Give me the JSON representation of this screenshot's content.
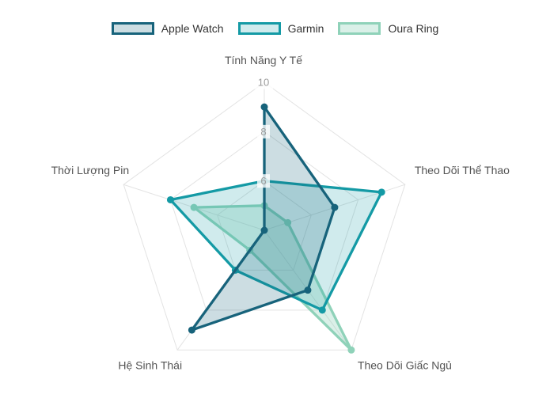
{
  "legend": {
    "position": "top",
    "items": [
      {
        "label": "Apple Watch"
      },
      {
        "label": "Garmin"
      },
      {
        "label": "Oura Ring"
      }
    ]
  },
  "chart_data": {
    "type": "radar",
    "categories": [
      "Tính Năng Y Tế",
      "Theo Dõi Thể Thao",
      "Theo Dõi Giấc Ngủ",
      "Hệ Sinh Thái",
      "Thời Lượng Pin"
    ],
    "series": [
      {
        "name": "Apple Watch",
        "values": [
          9,
          7,
          7,
          9,
          4
        ],
        "line_color": "#17637b",
        "fill_color": "rgba(23,99,123,0.22)"
      },
      {
        "name": "Garmin",
        "values": [
          6,
          9,
          8,
          6,
          8
        ],
        "line_color": "#149aa5",
        "fill_color": "rgba(20,154,165,0.20)"
      },
      {
        "name": "Oura Ring",
        "values": [
          5,
          5,
          10,
          5,
          7
        ],
        "line_color": "#8fd2b9",
        "fill_color": "rgba(143,210,185,0.33)"
      }
    ],
    "axis_min": 4,
    "axis_max": 10,
    "tick_values": [
      10,
      8,
      6
    ],
    "grid_rings": [
      6,
      8,
      10
    ],
    "grid_on": true,
    "legend_position": "top",
    "grid_color": "#e3e3e3",
    "tick_color": "#9c9c9c",
    "axis_label_color": "#545454",
    "tick_backdrop_color": "rgba(255,255,255,0.78)"
  }
}
